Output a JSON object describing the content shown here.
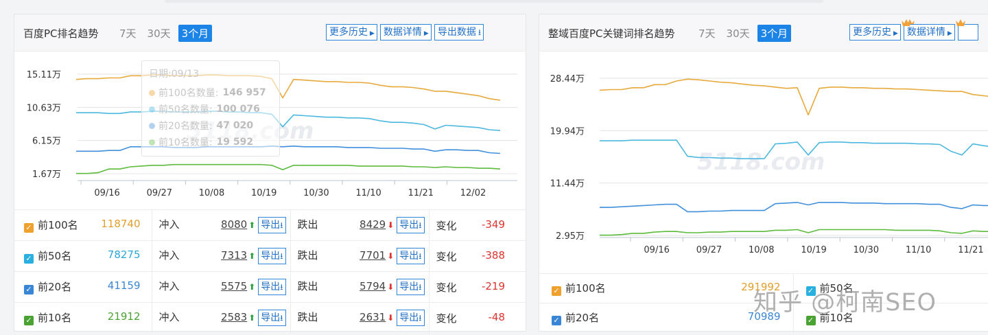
{
  "left_panel": {
    "title": "百度PC排名趋势",
    "tabs": [
      "7天",
      "30天",
      "3个月"
    ],
    "active_tab": "3个月",
    "buttons": {
      "history": "更多历史",
      "details": "数据详情",
      "export": "导出数据"
    },
    "watermark": "5118.com",
    "tooltip": {
      "date": "日期:09/13",
      "rows": [
        {
          "label": "前100名数量:",
          "value": "146 957",
          "color": "#f0b254"
        },
        {
          "label": "前50名数量:",
          "value": "100 076",
          "color": "#6cc6e6"
        },
        {
          "label": "前20名数量:",
          "value": "47 020",
          "color": "#6aa6de"
        },
        {
          "label": "前10名数量:",
          "value": "19 592",
          "color": "#7fc96c"
        }
      ]
    },
    "chart_data": {
      "type": "line",
      "x_ticks": [
        "09/16",
        "09/27",
        "10/08",
        "10/19",
        "10/30",
        "11/10",
        "11/21",
        "12/02"
      ],
      "y_ticks": [
        "15.11万",
        "10.63万",
        "6.15万",
        "1.67万"
      ],
      "ylim": [
        1.67,
        15.11
      ],
      "series": [
        {
          "name": "前100名",
          "color": "#e8a93b",
          "values": [
            14.4,
            14.5,
            14.5,
            14.6,
            14.6,
            14.9,
            14.9,
            15.0,
            15.0,
            14.9,
            14.9,
            14.9,
            15.0,
            15.0,
            14.9,
            14.9,
            14.9,
            14.8,
            14.5,
            11.9,
            14.4,
            14.3,
            14.2,
            14.1,
            14.1,
            14.0,
            14.0,
            13.9,
            13.6,
            13.4,
            13.4,
            13.3,
            13.1,
            12.8,
            12.8,
            12.6,
            12.4,
            12.2,
            11.8,
            11.6
          ]
        },
        {
          "name": "前50名",
          "color": "#4cb7df",
          "values": [
            9.9,
            9.9,
            9.9,
            9.8,
            9.8,
            10.0,
            10.0,
            10.1,
            10.1,
            10.0,
            10.0,
            10.0,
            10.1,
            10.1,
            10.0,
            10.0,
            9.9,
            9.9,
            9.7,
            8.0,
            9.6,
            9.5,
            9.4,
            9.3,
            9.3,
            9.2,
            9.2,
            9.1,
            8.8,
            8.6,
            8.6,
            8.5,
            8.3,
            7.7,
            8.2,
            8.1,
            8.0,
            7.9,
            7.6,
            7.5
          ]
        },
        {
          "name": "前20名",
          "color": "#3f8fdb",
          "values": [
            4.7,
            4.7,
            4.7,
            4.8,
            4.8,
            5.3,
            5.3,
            5.3,
            5.3,
            5.2,
            5.2,
            5.2,
            5.3,
            5.3,
            5.3,
            5.3,
            5.3,
            5.3,
            5.4,
            5.3,
            5.4,
            5.3,
            5.3,
            5.3,
            5.3,
            5.2,
            5.2,
            5.2,
            5.1,
            5.1,
            5.1,
            5.0,
            5.0,
            4.7,
            4.9,
            4.9,
            4.8,
            4.8,
            4.5,
            4.4
          ]
        },
        {
          "name": "前10名",
          "color": "#5cba3c",
          "values": [
            1.7,
            1.7,
            1.8,
            2.3,
            2.3,
            2.6,
            2.7,
            2.8,
            2.8,
            2.9,
            2.9,
            2.9,
            2.9,
            2.9,
            2.9,
            2.9,
            2.9,
            2.9,
            2.8,
            2.2,
            2.8,
            2.8,
            2.8,
            2.8,
            2.8,
            2.8,
            2.7,
            2.7,
            2.7,
            2.7,
            2.7,
            2.6,
            2.6,
            2.5,
            2.6,
            2.5,
            2.5,
            2.4,
            2.4,
            2.3
          ]
        }
      ]
    },
    "stats": [
      {
        "label": "前100名",
        "count": "118740",
        "count_color": "#e39e2b",
        "cb_color": "#f0a02c",
        "rush_label": "冲入",
        "rush": "8080",
        "drop_label": "跌出",
        "drop": "8429",
        "export": "导出",
        "change_label": "变化",
        "change": "-349"
      },
      {
        "label": "前50名",
        "count": "78275",
        "count_color": "#2aa7d8",
        "cb_color": "#2ab0e0",
        "rush_label": "冲入",
        "rush": "7313",
        "drop_label": "跌出",
        "drop": "7701",
        "export": "导出",
        "change_label": "变化",
        "change": "-388"
      },
      {
        "label": "前20名",
        "count": "41159",
        "count_color": "#3a86d6",
        "cb_color": "#3a86d6",
        "rush_label": "冲入",
        "rush": "5575",
        "drop_label": "跌出",
        "drop": "5794",
        "export": "导出",
        "change_label": "变化",
        "change": "-219"
      },
      {
        "label": "前10名",
        "count": "21912",
        "count_color": "#4aa232",
        "cb_color": "#4aa232",
        "rush_label": "冲入",
        "rush": "2583",
        "drop_label": "跌出",
        "drop": "2631",
        "export": "导出",
        "change_label": "变化",
        "change": "-48"
      }
    ]
  },
  "right_panel": {
    "title": "整域百度PC关键词排名趋势",
    "tabs": [
      "7天",
      "30天",
      "3个月"
    ],
    "active_tab": "3个月",
    "buttons": {
      "history": "更多历史",
      "details": "数据详情"
    },
    "watermark": "5118.com",
    "chart_data": {
      "type": "line",
      "x_ticks": [
        "09/16",
        "09/27",
        "10/08",
        "10/19",
        "10/30",
        "11/10",
        "11/21"
      ],
      "y_ticks": [
        "28.44万",
        "19.94万",
        "11.44万",
        "2.95万"
      ],
      "ylim": [
        2.95,
        28.44
      ],
      "series": [
        {
          "name": "前100名",
          "color": "#e8a93b",
          "values": [
            26.5,
            26.6,
            26.6,
            26.9,
            26.9,
            27.4,
            27.4,
            28.0,
            28.3,
            28.2,
            28.0,
            27.8,
            27.7,
            27.5,
            27.3,
            27.2,
            27.0,
            26.8,
            26.9,
            22.5,
            26.8,
            27.0,
            27.0,
            26.9,
            26.9,
            26.8,
            26.8,
            26.7,
            26.7,
            26.6,
            26.5,
            26.4,
            26.3,
            26.3,
            25.8,
            25.6,
            25.4,
            25.1
          ]
        },
        {
          "name": "前50名",
          "color": "#4cb7df",
          "values": [
            18.3,
            18.3,
            18.3,
            18.4,
            18.4,
            18.4,
            18.4,
            18.4,
            15.8,
            15.6,
            15.6,
            15.5,
            15.5,
            15.4,
            15.4,
            15.4,
            17.8,
            17.9,
            18.1,
            16.0,
            18.0,
            18.1,
            18.1,
            18.0,
            18.0,
            17.9,
            17.9,
            17.9,
            17.9,
            17.8,
            17.8,
            17.7,
            16.6,
            16.0,
            17.8,
            17.5,
            17.3,
            17.1
          ]
        },
        {
          "name": "前20名",
          "color": "#3f8fdb",
          "values": [
            7.5,
            7.5,
            7.6,
            7.7,
            7.8,
            7.9,
            8.0,
            8.0,
            6.8,
            6.8,
            6.9,
            6.9,
            7.0,
            7.0,
            7.0,
            7.0,
            8.1,
            8.2,
            8.3,
            7.9,
            8.3,
            8.3,
            8.3,
            8.2,
            8.2,
            8.2,
            8.1,
            8.1,
            8.1,
            8.1,
            8.0,
            8.0,
            7.5,
            7.3,
            7.9,
            7.8,
            7.8,
            7.7
          ]
        },
        {
          "name": "前10名",
          "color": "#5cba3c",
          "values": [
            3.0,
            3.0,
            3.1,
            3.3,
            3.3,
            3.5,
            3.6,
            3.6,
            3.4,
            3.4,
            3.5,
            3.5,
            3.6,
            3.6,
            3.6,
            3.6,
            3.8,
            3.8,
            3.9,
            3.4,
            3.9,
            3.9,
            3.9,
            3.9,
            3.9,
            3.9,
            3.9,
            3.8,
            3.8,
            3.8,
            3.8,
            3.7,
            3.4,
            3.3,
            3.7,
            3.6,
            3.6,
            3.5
          ]
        }
      ]
    },
    "stats": [
      {
        "label": "前100名",
        "count": "291992",
        "count_color": "#e39e2b",
        "cb_color": "#f0a02c"
      },
      {
        "label": "前50名",
        "count": "",
        "count_color": "#2aa7d8",
        "cb_color": "#2ab0e0"
      },
      {
        "label": "前20名",
        "count": "70989",
        "count_color": "#3a86d6",
        "cb_color": "#3a86d6"
      },
      {
        "label": "前10名",
        "count": "",
        "count_color": "#4aa232",
        "cb_color": "#4aa232"
      }
    ]
  },
  "overlay_watermark": "知乎 @柯南SEO"
}
